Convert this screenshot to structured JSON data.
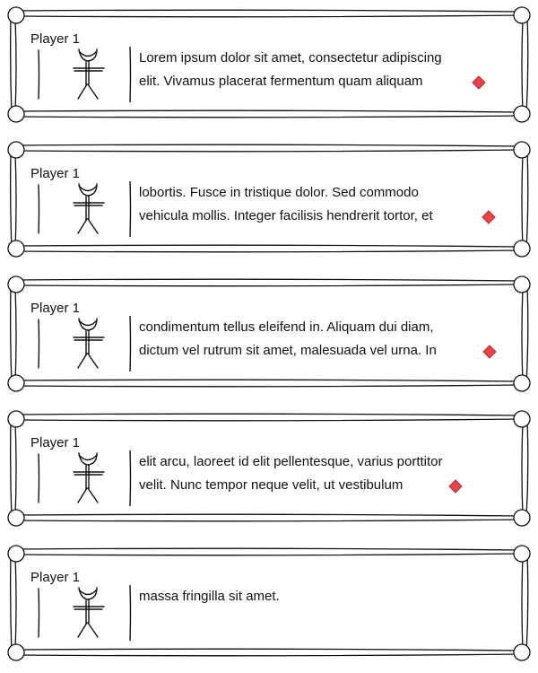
{
  "dialogue": {
    "entries": [
      {
        "speaker": "Player 1",
        "lines": [
          "Lorem ipsum dolor sit amet, consectetur adipiscing",
          "elit. Vivamus placerat fermentum quam aliquam"
        ],
        "has_next": true
      },
      {
        "speaker": "Player 1",
        "lines": [
          "lobortis. Fusce in tristique dolor. Sed commodo",
          "vehicula mollis. Integer facilisis hendrerit tortor, et"
        ],
        "has_next": true
      },
      {
        "speaker": "Player 1",
        "lines": [
          "condimentum tellus eleifend in. Aliquam dui diam,",
          "dictum vel rutrum sit amet, malesuada vel urna. In"
        ],
        "has_next": true
      },
      {
        "speaker": "Player 1",
        "lines": [
          "elit arcu, laoreet id elit pellentesque, varius porttitor",
          "velit. Nunc tempor neque velit, ut vestibulum"
        ],
        "has_next": true
      },
      {
        "speaker": "Player 1",
        "lines": [
          "massa fringilla sit amet."
        ],
        "has_next": false
      }
    ]
  },
  "icons": {
    "avatar": "stick-figure-icon",
    "continue": "red-diamond-icon"
  },
  "colors": {
    "ink": "#111111",
    "marker_fill": "#e8454a",
    "marker_stroke": "#b52a2e",
    "background": "#ffffff"
  }
}
